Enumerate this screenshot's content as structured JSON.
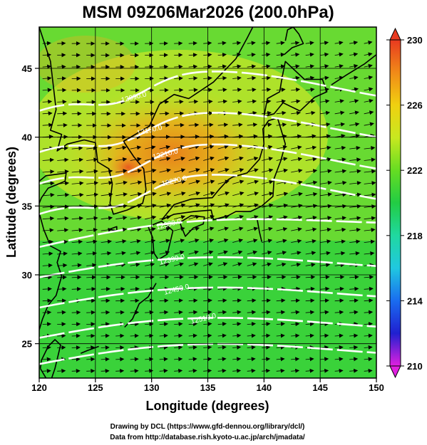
{
  "title": "MSM 09Z06Mar2026 (200.0hPa)",
  "x_axis": {
    "label": "Longitude (degrees)",
    "range": [
      120,
      150
    ],
    "ticks": [
      "120",
      "125",
      "130",
      "135",
      "140",
      "145",
      "150"
    ]
  },
  "y_axis": {
    "label": "Latitude  (degrees)",
    "range": [
      22.5,
      48
    ],
    "ticks": [
      "25",
      "30",
      "35",
      "40",
      "45"
    ]
  },
  "colorbar": {
    "ticks": [
      "230",
      "226",
      "222",
      "218",
      "214",
      "210"
    ],
    "range": [
      210,
      230
    ],
    "colors": [
      "#e020e0",
      "#2020d0",
      "#1a6cf0",
      "#20c8e0",
      "#20d8a0",
      "#22cc44",
      "#66dd22",
      "#c8e820",
      "#f0d010",
      "#f08a18",
      "#e83a20"
    ]
  },
  "contours": {
    "labels": [
      "12090.0",
      "12150.0",
      "12210.0",
      "12270.0",
      "12330.0",
      "12390.0",
      "12450.0",
      "12510.0"
    ],
    "color": "#ffffff"
  },
  "credits": {
    "line1": "Drawing by DCL (https://www.gfd-dennou.org/library/dcl/)",
    "line2": "Data from http://database.rish.kyoto-u.ac.jp/arch/jmadata/"
  }
}
